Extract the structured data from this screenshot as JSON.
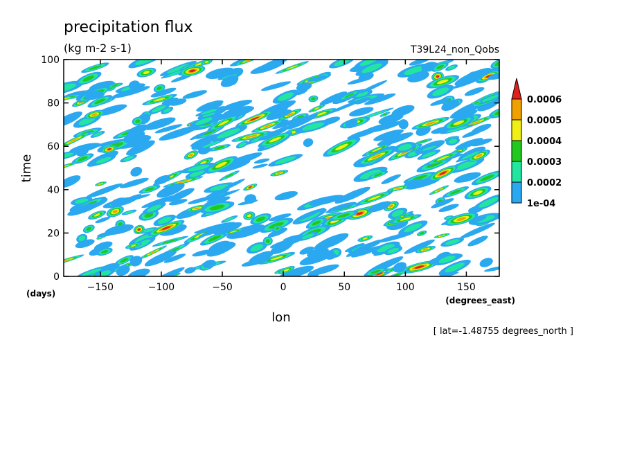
{
  "chart_data": {
    "type": "heatmap",
    "title": "precipitation flux",
    "subtitle": "(kg m-2 s-1)",
    "run_label": "T39L24_non_Qobs",
    "xlabel": "lon",
    "xunit": "(degrees_east)",
    "ylabel": "time",
    "yunit": "(days)",
    "xlim": [
      -180,
      177
    ],
    "ylim": [
      0,
      100
    ],
    "xticks": [
      -150,
      -100,
      -50,
      0,
      50,
      100,
      150
    ],
    "yticks": [
      0,
      20,
      40,
      60,
      80,
      100
    ],
    "note": "[ lat=-1.48755 degrees_north ]",
    "colorbar": {
      "levels": [
        "1e-04",
        "0.0002",
        "0.0003",
        "0.0004",
        "0.0005",
        "0.0006"
      ],
      "colors": [
        "#2aa8f0",
        "#22e6a0",
        "#22c81e",
        "#f0f014",
        "#f0a000",
        "#e01e1e"
      ],
      "extend": "max"
    },
    "grid": false,
    "legend": "colorbar right"
  }
}
